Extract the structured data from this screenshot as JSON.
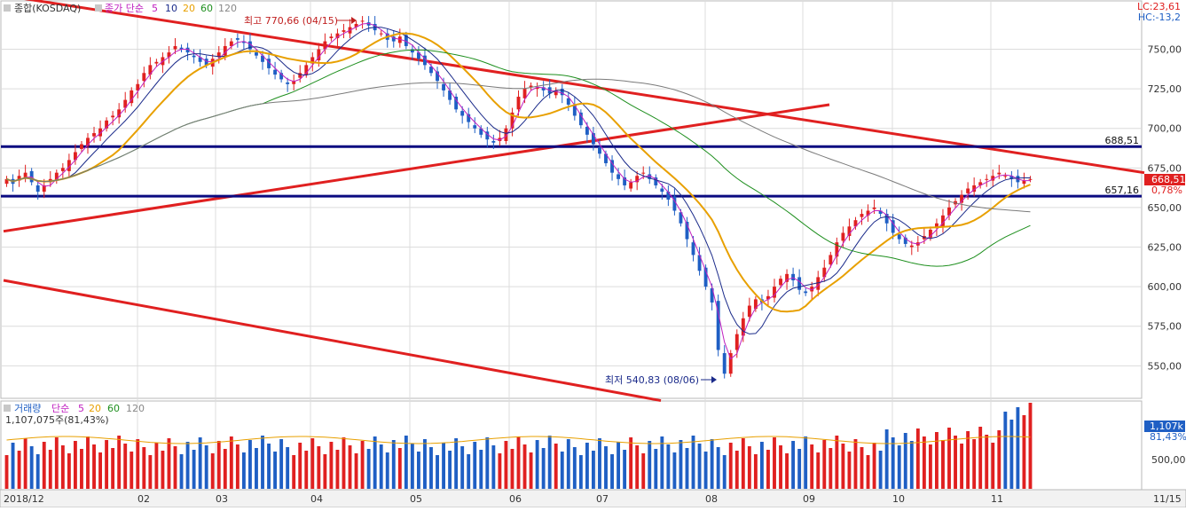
{
  "header": {
    "main_symbol": "종합(KOSDAQ)",
    "price_ind": "종가 단순",
    "price_ma_5": "5",
    "price_ma_10": "10",
    "price_ma_20": "20",
    "price_ma_60": "60",
    "price_ma_120": "120",
    "volume_title": "거래량",
    "volume_ind": "단순",
    "volume_ma_5": "5",
    "volume_ma_20": "20",
    "volume_ma_60": "60",
    "volume_ma_120": "120",
    "volume_value_text": "1,107,075주(81,43%)",
    "lc_text": "LC:23,61",
    "hc_text": "HC:-13,2"
  },
  "colors": {
    "up": "#e02020",
    "down": "#1f5fc4",
    "ma5": "#c020c0",
    "ma10": "#1a2a8a",
    "ma20": "#e8a000",
    "ma60": "#1e8f1e",
    "ma120": "#7a7a7a",
    "trendline": "#e02020",
    "hline": "#0a0a80",
    "grid": "#dcdcdc",
    "axis_bg": "#ffffff"
  },
  "chart_data": [
    {
      "type": "candlestick",
      "name": "종합(KOSDAQ)",
      "period": "2018/12 – 2019/11",
      "ylim": [
        530,
        780
      ],
      "y_ticks": [
        "550,00",
        "575,00",
        "600,00",
        "625,00",
        "650,00",
        "675,00",
        "700,00",
        "725,00",
        "750,00"
      ],
      "x_tick_labels": [
        "2018/12",
        "02",
        "03",
        "04",
        "05",
        "06",
        "07",
        "08",
        "09",
        "10",
        "11",
        "11/15"
      ],
      "annotations": {
        "high": {
          "text": "최고 770,66 (04/15)",
          "value": 770.66
        },
        "low": {
          "text": "최저 540,83 (08/06)",
          "value": 540.83
        },
        "current_price": {
          "text": "668,51",
          "value": 668.51
        },
        "current_change": "0,78%"
      },
      "horizontal_levels": [
        {
          "label": "688,51",
          "value": 688.51
        },
        {
          "label": "657,16",
          "value": 657.16
        }
      ],
      "trendlines": [
        {
          "from": {
            "x": "2018/12",
            "y": 784
          },
          "to": {
            "x": "11/15",
            "y": 672
          }
        },
        {
          "from": {
            "x": "2018/12",
            "y": 635
          },
          "to": {
            "x": "2019/07",
            "y": 715
          }
        },
        {
          "from": {
            "x": "2018/12",
            "y": 604
          },
          "to": {
            "x": "2019/07",
            "y": 528
          }
        }
      ],
      "moving_averages": [
        "5",
        "10",
        "20",
        "60",
        "120"
      ],
      "closes": [
        668,
        665,
        670,
        672,
        666,
        660,
        664,
        668,
        672,
        675,
        680,
        685,
        690,
        694,
        697,
        700,
        705,
        708,
        712,
        718,
        724,
        728,
        735,
        740,
        742,
        745,
        748,
        752,
        750,
        748,
        745,
        742,
        740,
        744,
        748,
        752,
        755,
        756,
        754,
        750,
        746,
        742,
        738,
        734,
        731,
        728,
        730,
        735,
        740,
        745,
        750,
        755,
        758,
        760,
        762,
        764,
        766,
        768,
        765,
        762,
        760,
        756,
        755,
        758,
        752,
        748,
        744,
        740,
        735,
        730,
        724,
        718,
        712,
        708,
        704,
        700,
        696,
        693,
        691,
        694,
        700,
        710,
        720,
        725,
        727,
        726,
        724,
        722,
        724,
        721,
        715,
        708,
        702,
        696,
        690,
        684,
        678,
        672,
        668,
        664,
        666,
        670,
        672,
        668,
        664,
        660,
        655,
        648,
        640,
        630,
        620,
        610,
        600,
        590,
        560,
        545,
        558,
        570,
        580,
        588,
        592,
        590,
        594,
        600,
        605,
        608,
        604,
        598,
        596,
        600,
        606,
        612,
        620,
        628,
        634,
        638,
        642,
        646,
        648,
        650,
        646,
        640,
        634,
        630,
        627,
        626,
        628,
        632,
        636,
        640,
        645,
        650,
        654,
        658,
        662,
        664,
        666,
        668,
        670,
        672,
        670,
        668,
        666,
        667,
        668
      ]
    },
    {
      "type": "bar",
      "name": "거래량",
      "y_ticks": [
        "500,000"
      ],
      "annotations": {
        "current_volume": "1,107k",
        "current_ratio": "81,43%"
      }
    }
  ]
}
